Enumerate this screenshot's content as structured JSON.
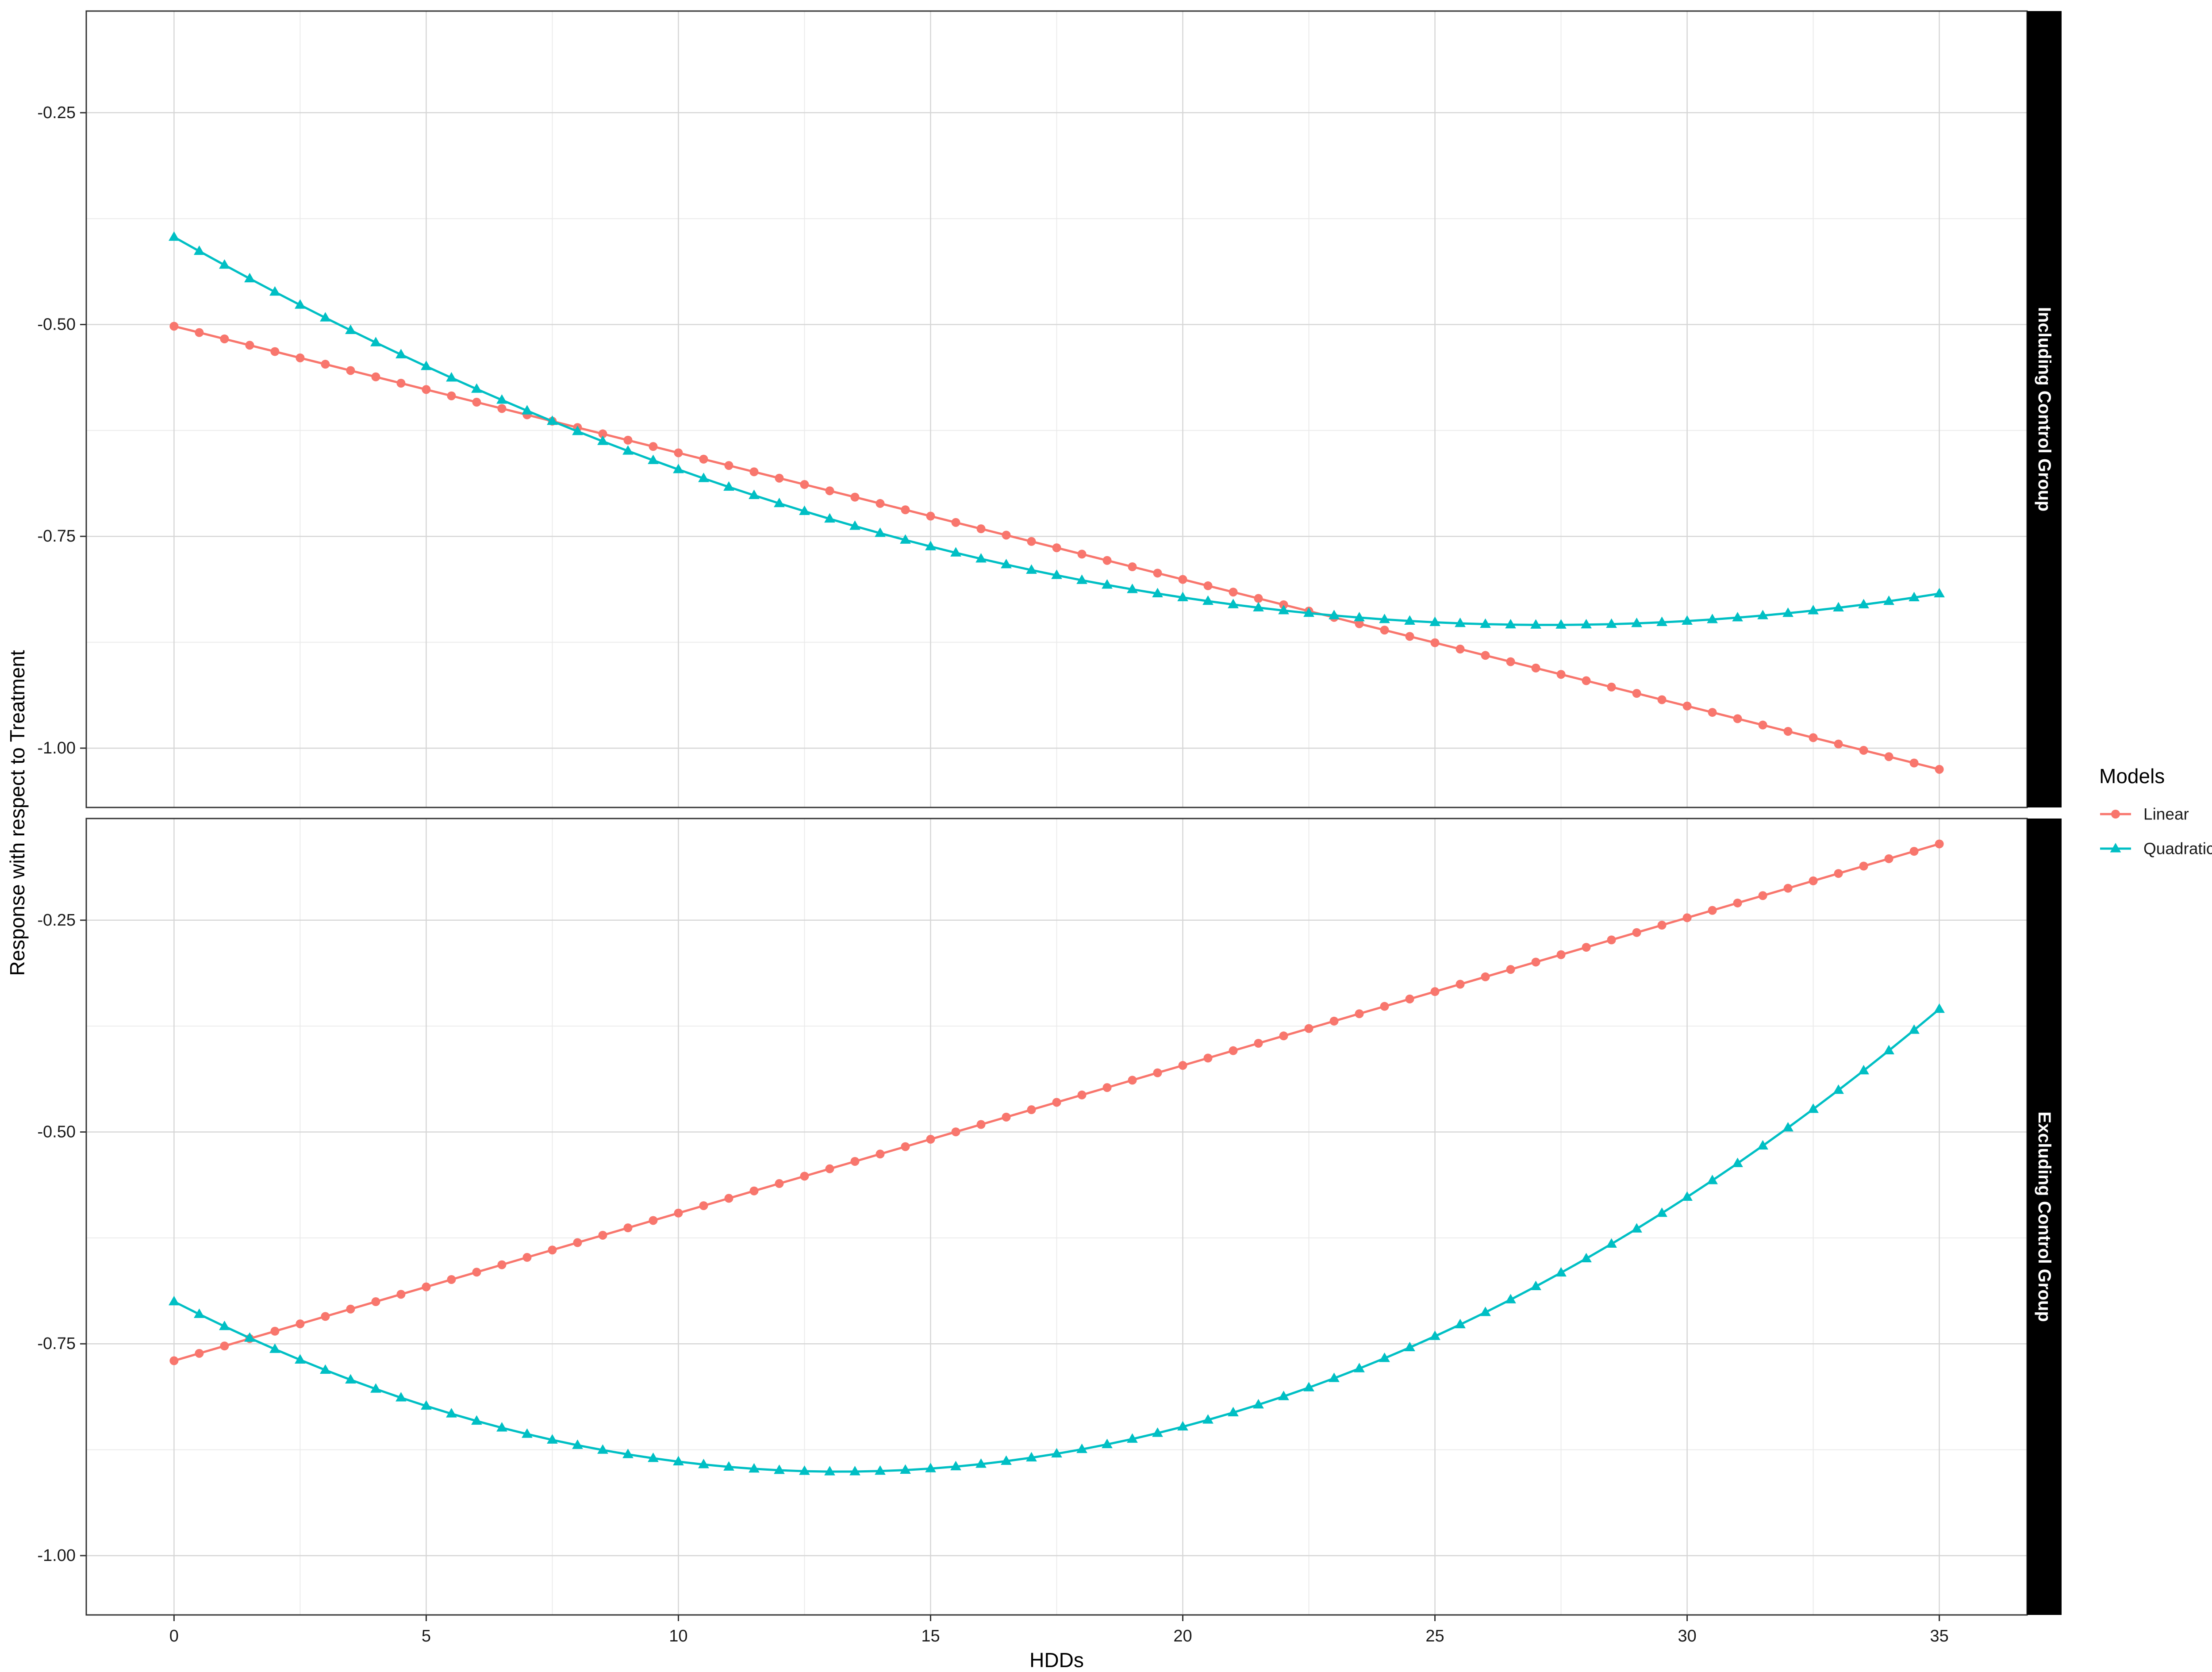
{
  "chart_data": {
    "type": "line",
    "xlabel": "HDDs",
    "ylabel": "Response with respect to Treatment",
    "xlim": [
      -1.74,
      36.74
    ],
    "ylim": [
      -1.07,
      -0.13
    ],
    "x_ticks": [
      0,
      5,
      10,
      15,
      20,
      25,
      30,
      35
    ],
    "x_tick_labels": [
      "0",
      "5",
      "10",
      "15",
      "20",
      "25",
      "30",
      "35"
    ],
    "y_ticks": [
      -0.25,
      -0.5,
      -0.75,
      -1.0
    ],
    "y_tick_labels": [
      "-0.25",
      "-0.50",
      "-0.75",
      "-1.00"
    ],
    "grid": true,
    "x": {
      "start": 0,
      "end": 35,
      "step": 0.5
    },
    "legend": {
      "title": "Models",
      "position": "right",
      "entries": [
        {
          "name": "Linear",
          "color": "#F8766D",
          "marker": "circle"
        },
        {
          "name": "Quadratic",
          "color": "#00BFC4",
          "marker": "triangle"
        }
      ]
    },
    "panels": [
      {
        "strip_label": "Including Control Group",
        "series": [
          {
            "name": "Linear",
            "model": "linear",
            "values_at": {
              "0": -0.502,
              "35": -1.025
            }
          },
          {
            "name": "Quadratic",
            "model": "quadratic",
            "values_at": {
              "0": -0.395,
              "10": -0.675,
              "27": -0.85,
              "35": -0.82
            }
          }
        ]
      },
      {
        "strip_label": "Excluding Control Group",
        "series": [
          {
            "name": "Linear",
            "model": "linear",
            "values_at": {
              "0": -0.77,
              "35": -0.16
            }
          },
          {
            "name": "Quadratic",
            "model": "quadratic",
            "values_at": {
              "0": -0.7,
              "10": -0.89,
              "13.5": -0.9,
              "35": -0.355
            }
          }
        ]
      }
    ]
  }
}
